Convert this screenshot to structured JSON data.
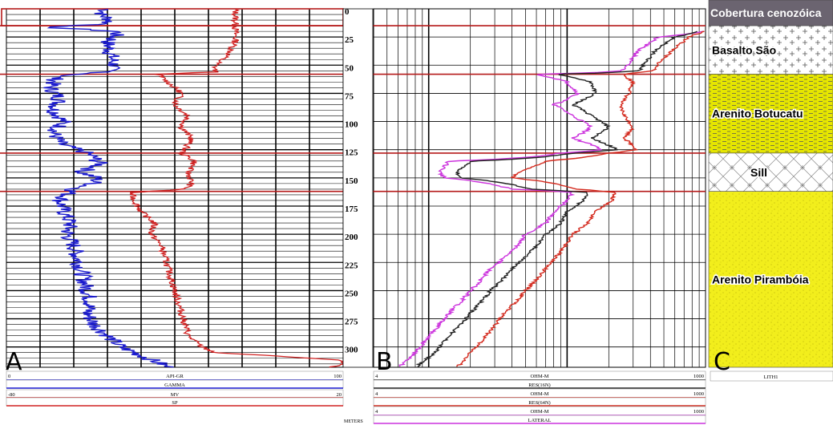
{
  "panels": {
    "a": {
      "letter": "A"
    },
    "b": {
      "letter": "B"
    },
    "c": {
      "letter": "C"
    }
  },
  "depth_axis": {
    "ticks": [
      "0",
      "25",
      "50",
      "75",
      "100",
      "125",
      "150",
      "175",
      "200",
      "225",
      "250",
      "275",
      "300"
    ],
    "units": "METERS"
  },
  "footer_a": {
    "gr_min": "0",
    "gr_mnemonic": "API-GR",
    "gr_max": "100",
    "gr_name": "GAMMA",
    "sp_min": "-80",
    "sp_mnemonic": "MV",
    "sp_max": "20",
    "sp_name": "SP"
  },
  "footer_b": {
    "r1_min": "4",
    "r1_unit": "OHM-M",
    "r1_max": "1000",
    "r1_name": "RES(16N)",
    "r2_min": "4",
    "r2_unit": "OHM-M",
    "r2_max": "1000",
    "r2_name": "RES(64N)",
    "r3_min": "4",
    "r3_unit": "OHM-M",
    "r3_max": "1000",
    "r3_name": "LATERAL"
  },
  "footer_c": {
    "title": "LITH1"
  },
  "lithology": [
    {
      "name": "Cobertura cenozóica",
      "top": 0,
      "base": 15,
      "fill": "#6b6470",
      "pattern": "solid",
      "text_color": "#ffffff"
    },
    {
      "name": "Basalto São",
      "top": 15,
      "base": 58,
      "fill": "#ffffff",
      "pattern": "plus",
      "text_color": "#000000"
    },
    {
      "name": "Arenito Botucatu",
      "top": 58,
      "base": 128,
      "fill": "#e6e600",
      "pattern": "dash",
      "text_color": "#000000"
    },
    {
      "name": "Sill",
      "top": 128,
      "base": 162,
      "fill": "#ffffff",
      "pattern": "cross",
      "text_color": "#000000"
    },
    {
      "name": "Arenito Pirambóia",
      "top": 162,
      "base": 318,
      "fill": "#f2ee1c",
      "pattern": "speckle",
      "text_color": "#000000"
    }
  ],
  "colors": {
    "gamma": "#1a1acd",
    "sp": "#d02020",
    "res16n": "#222222",
    "res64n": "#d42a1e",
    "lateral": "#cc33dd",
    "boundary": "#b51a1a"
  },
  "chart_data": {
    "type": "line",
    "y_axis": {
      "label": "METERS",
      "ylim": [
        0,
        318
      ],
      "inverted": true,
      "ticks": [
        0,
        25,
        50,
        75,
        100,
        125,
        150,
        175,
        200,
        225,
        250,
        275,
        300
      ]
    },
    "formation_boundaries": [
      15,
      58,
      128,
      162
    ],
    "tracks": [
      {
        "panel": "A",
        "series": [
          {
            "name": "GAMMA",
            "unit": "API-GR",
            "xlim": [
              0,
              100
            ],
            "scale": "linear",
            "depth": [
              0,
              5,
              10,
              14,
              16,
              20,
              25,
              30,
              40,
              50,
              56,
              60,
              70,
              80,
              90,
              100,
              110,
              120,
              125,
              128,
              132,
              138,
              145,
              150,
              155,
              160,
              165,
              170,
              180,
              190,
              200,
              210,
              220,
              230,
              240,
              250,
              260,
              270,
              280,
              290,
              300,
              305,
              310,
              315,
              318
            ],
            "values": [
              30,
              28,
              31,
              29,
              10,
              33,
              32,
              30,
              31,
              32,
              30,
              15,
              13,
              16,
              14,
              17,
              14,
              16,
              21,
              24,
              26,
              28,
              22,
              27,
              26,
              20,
              18,
              16,
              17,
              19,
              18,
              20,
              21,
              22,
              23,
              24,
              25,
              24,
              26,
              30,
              34,
              38,
              42,
              46,
              48
            ]
          },
          {
            "name": "SP",
            "unit": "MV",
            "xlim": [
              -80,
              20
            ],
            "scale": "linear",
            "depth": [
              0,
              14,
              16,
              20,
              30,
              40,
              50,
              56,
              58,
              65,
              75,
              85,
              95,
              105,
              115,
              125,
              128,
              135,
              145,
              155,
              160,
              163,
              170,
              180,
              190,
              200,
              210,
              220,
              230,
              240,
              250,
              260,
              270,
              280,
              290,
              300,
              305,
              308,
              312,
              315,
              318
            ],
            "values": [
              -12,
              -12,
              -12,
              -12,
              -12,
              -14,
              -18,
              -18,
              -35,
              -32,
              -28,
              -30,
              -26,
              -28,
              -25,
              -27,
              -28,
              -24,
              -26,
              -25,
              -27,
              -43,
              -42,
              -40,
              -36,
              -37,
              -34,
              -33,
              -32,
              -31,
              -30,
              -29,
              -28,
              -27,
              -26,
              -22,
              -18,
              0,
              20,
              20,
              16
            ]
          }
        ]
      },
      {
        "panel": "B",
        "series": [
          {
            "name": "RES(16N)",
            "unit": "OHM-M",
            "xlim": [
              4,
              1000
            ],
            "scale": "log",
            "depth": [
              20,
              25,
              35,
              45,
              55,
              58,
              65,
              75,
              85,
              95,
              105,
              115,
              125,
              128,
              135,
              145,
              150,
              160,
              163,
              170,
              180,
              190,
              200,
              215,
              230,
              250,
              270,
              290,
              305,
              318
            ],
            "values": [
              900,
              600,
              450,
              380,
              330,
              80,
              150,
              160,
              110,
              150,
              200,
              150,
              230,
              110,
              20,
              16,
              17,
              55,
              140,
              130,
              100,
              90,
              70,
              55,
              40,
              28,
              20,
              14,
              11,
              8
            ]
          },
          {
            "name": "RES(64N)",
            "unit": "OHM-M",
            "xlim": [
              4,
              1000
            ],
            "scale": "log",
            "depth": [
              20,
              25,
              35,
              45,
              55,
              58,
              65,
              75,
              85,
              95,
              105,
              115,
              125,
              128,
              135,
              145,
              150,
              160,
              163,
              170,
              180,
              190,
              200,
              215,
              230,
              250,
              270,
              290,
              305,
              318
            ],
            "values": [
              980,
              750,
              600,
              480,
              420,
              250,
              300,
              280,
              240,
              260,
              300,
              260,
              320,
              200,
              70,
              45,
              40,
              120,
              220,
              210,
              160,
              140,
              110,
              90,
              70,
              50,
              35,
              26,
              20,
              16
            ]
          },
          {
            "name": "LATERAL",
            "unit": "OHM-M",
            "xlim": [
              4,
              1000
            ],
            "scale": "log",
            "depth": [
              20,
              25,
              35,
              45,
              55,
              58,
              65,
              75,
              85,
              95,
              105,
              115,
              125,
              128,
              135,
              145,
              150,
              160,
              163,
              170,
              180,
              190,
              200,
              215,
              230,
              250,
              270,
              290,
              305,
              318
            ],
            "values": [
              1000,
              450,
              340,
              290,
              250,
              60,
              100,
              120,
              80,
              110,
              150,
              110,
              180,
              90,
              14,
              12,
              13,
              40,
              110,
              100,
              80,
              70,
              50,
              40,
              28,
              20,
              14,
              10,
              8,
              6
            ]
          }
        ]
      }
    ]
  }
}
